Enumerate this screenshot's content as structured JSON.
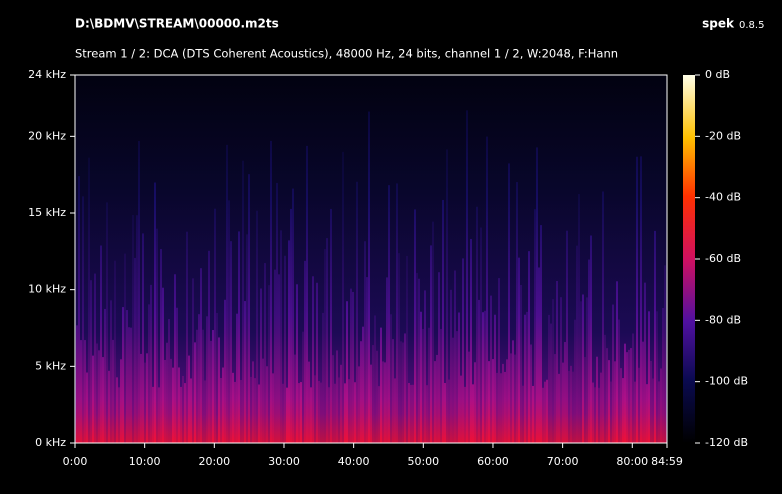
{
  "chart_data": {
    "type": "spectrogram",
    "title": "D:\\BDMV\\STREAM\\00000.m2ts",
    "app_name": "spek",
    "app_version": "0.8.5",
    "subtitle": "Stream 1 / 2: DCA (DTS Coherent Acoustics), 48000 Hz, 24 bits, channel 1 / 2, W:2048, F:Hann",
    "xlim": [
      0,
      84.983
    ],
    "xticks": [
      {
        "value": 0,
        "label": "0:00"
      },
      {
        "value": 10,
        "label": "10:00"
      },
      {
        "value": 20,
        "label": "20:00"
      },
      {
        "value": 30,
        "label": "30:00"
      },
      {
        "value": 40,
        "label": "40:00"
      },
      {
        "value": 50,
        "label": "50:00"
      },
      {
        "value": 60,
        "label": "60:00"
      },
      {
        "value": 70,
        "label": "70:00"
      },
      {
        "value": 80,
        "label": "80:00"
      },
      {
        "value": 84.983,
        "label": "84:59"
      }
    ],
    "ylim": [
      0,
      24
    ],
    "yticks": [
      {
        "value": 0,
        "label": "0 kHz"
      },
      {
        "value": 5,
        "label": "5 kHz"
      },
      {
        "value": 10,
        "label": "10 kHz"
      },
      {
        "value": 15,
        "label": "15 kHz"
      },
      {
        "value": 20,
        "label": "20 kHz"
      },
      {
        "value": 24,
        "label": "24 kHz"
      }
    ],
    "clim": [
      -120,
      0
    ],
    "cticks": [
      {
        "value": 0,
        "label": "0 dB"
      },
      {
        "value": -20,
        "label": "-20 dB"
      },
      {
        "value": -40,
        "label": "-40 dB"
      },
      {
        "value": -60,
        "label": "-60 dB"
      },
      {
        "value": -80,
        "label": "-80 dB"
      },
      {
        "value": -100,
        "label": "-100 dB"
      },
      {
        "value": -120,
        "label": "-120 dB"
      }
    ]
  }
}
